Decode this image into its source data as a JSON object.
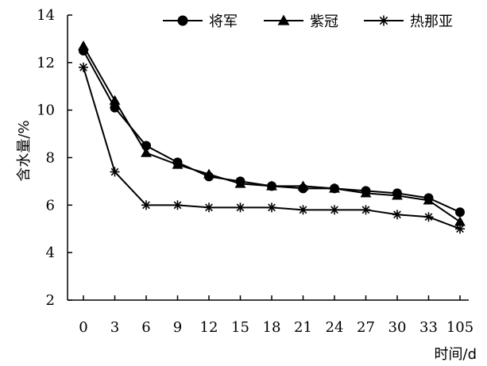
{
  "chart_data": {
    "type": "line",
    "title": "",
    "xlabel": "时间/d",
    "ylabel": "含水量/%",
    "categories": [
      "0",
      "3",
      "6",
      "9",
      "12",
      "15",
      "18",
      "21",
      "24",
      "27",
      "30",
      "33",
      "105"
    ],
    "ylim": [
      2,
      14
    ],
    "yticks": [
      "2",
      "4",
      "6",
      "8",
      "10",
      "12",
      "14"
    ],
    "grid": false,
    "legend_position": "top-right",
    "series": [
      {
        "name": "将军",
        "marker": "circle",
        "values": [
          12.5,
          10.1,
          8.5,
          7.8,
          7.2,
          7.0,
          6.8,
          6.7,
          6.7,
          6.6,
          6.5,
          6.3,
          5.7
        ]
      },
      {
        "name": "紫冠",
        "marker": "triangle",
        "values": [
          12.7,
          10.4,
          8.2,
          7.7,
          7.3,
          6.9,
          6.8,
          6.8,
          6.7,
          6.5,
          6.4,
          6.2,
          5.3
        ]
      },
      {
        "name": "热那亚",
        "marker": "star",
        "values": [
          11.8,
          7.4,
          6.0,
          6.0,
          5.9,
          5.9,
          5.9,
          5.8,
          5.8,
          5.8,
          5.6,
          5.5,
          5.0
        ]
      }
    ]
  }
}
